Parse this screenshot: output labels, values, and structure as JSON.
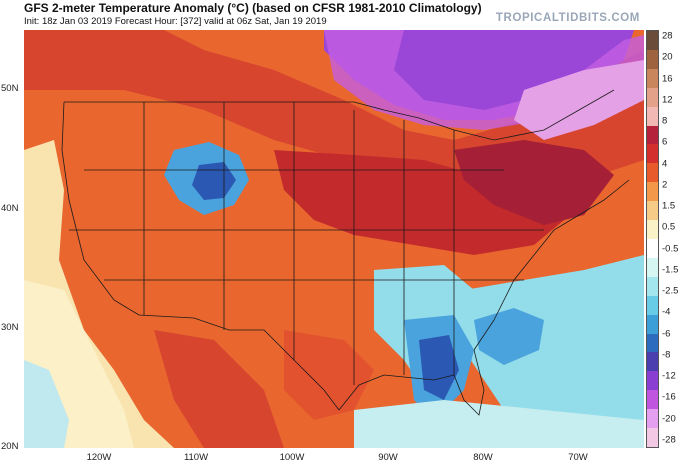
{
  "header": {
    "title": "GFS 2-meter Temperature Anomaly (°C) (based on CFSR 1981-2010 Climatology)",
    "subtitle": "Init: 18z Jan 03 2019   Forecast Hour: [372]   valid at 06z Sat, Jan 19 2019",
    "brand": "TROPICALTIDBITS.COM"
  },
  "map": {
    "lat_labels": [
      "50N",
      "40N",
      "30N",
      "20N"
    ],
    "lon_labels": [
      "120W",
      "110W",
      "100W",
      "90W",
      "80W",
      "70W"
    ]
  },
  "colorbar": {
    "labels": [
      "28",
      "20",
      "16",
      "12",
      "8",
      "6",
      "4",
      "2",
      "1.5",
      "0.5",
      "-0.5",
      "-1.5",
      "-2.5",
      "-4",
      "-6",
      "-8",
      "-12",
      "-16",
      "-20",
      "-28"
    ],
    "colors": [
      "#6b4c3a",
      "#a0633f",
      "#c9855b",
      "#e3a189",
      "#f2b9b4",
      "#b5223b",
      "#d32f2c",
      "#e85a2c",
      "#f29848",
      "#f6cb87",
      "#fbf2c7",
      "#ffffff",
      "#d6f6f4",
      "#a3e6ee",
      "#69cce6",
      "#3d9fd8",
      "#2d6bbf",
      "#4b3fb0",
      "#8a3fd2",
      "#c056e0",
      "#e49ff0",
      "#f3c8e4"
    ]
  },
  "colors": {
    "warm_strong": "#c0242c",
    "warm": "#e2522e",
    "warm_light": "#f3a266",
    "neutral": "#fbefc4",
    "cool_light": "#93dcea",
    "cool": "#4aa3dc",
    "cold": "#2b58b3",
    "very_cold": "#9a46d6",
    "extreme_cold": "#c35fe2"
  }
}
